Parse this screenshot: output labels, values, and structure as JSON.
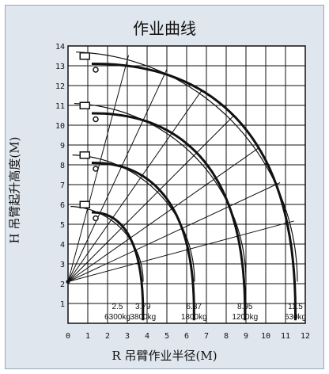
{
  "chart_data": {
    "type": "line",
    "title": "作业曲线",
    "xlabel": "R 吊臂作业半径(M)",
    "ylabel": "H 吊臂起升高度(M)",
    "xlim": [
      0,
      12
    ],
    "ylim": [
      0,
      14
    ],
    "x_ticks": [
      "0",
      "1",
      "2",
      "3",
      "4",
      "5",
      "6",
      "7",
      "8",
      "9",
      "10",
      "11",
      "12"
    ],
    "y_ticks": [
      "1",
      "2",
      "3",
      "4",
      "5",
      "6",
      "7",
      "8",
      "9",
      "10",
      "11",
      "12",
      "13",
      "14"
    ],
    "grid": true,
    "pivot": [
      0,
      2.1
    ],
    "boom_lengths": [
      3.8,
      6.4,
      9.0,
      11.6
    ],
    "series": [
      {
        "max_radius": 3.79,
        "max_height": 6.2,
        "radius_at_max_load": 2.5,
        "max_load": "6300kg",
        "end_load": "3800kg"
      },
      {
        "max_radius": 6.37,
        "max_height": 8.7,
        "radius_at_max_load": null,
        "max_load": null,
        "end_load": "1800kg"
      },
      {
        "max_radius": 8.95,
        "max_height": 11.2,
        "radius_at_max_load": null,
        "max_load": null,
        "end_load": "1200kg"
      },
      {
        "max_radius": 11.5,
        "max_height": 13.7,
        "radius_at_max_load": null,
        "max_load": null,
        "end_load": "630kg"
      }
    ],
    "boom_angles_deg": [
      15,
      25,
      35,
      45,
      55,
      65,
      75
    ],
    "annotations": [
      {
        "x": 2.5,
        "text": "2.5"
      },
      {
        "x": 3.79,
        "text": "3.79"
      },
      {
        "x": 6.37,
        "text": "6.37"
      },
      {
        "x": 8.95,
        "text": "8.95"
      },
      {
        "x": 11.5,
        "text": "11.5"
      }
    ],
    "load_labels": [
      {
        "x": 2.5,
        "text": "6300kg"
      },
      {
        "x": 3.79,
        "text": "3800kg"
      },
      {
        "x": 6.37,
        "text": "1800kg"
      },
      {
        "x": 8.95,
        "text": "1200kg"
      },
      {
        "x": 11.5,
        "text": "630kg"
      }
    ]
  }
}
